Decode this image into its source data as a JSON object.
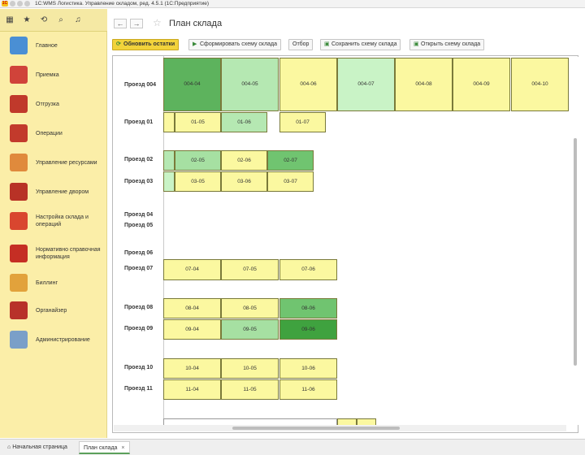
{
  "window": {
    "title": "1С:WMS Логистика. Управление складом, ред. 4.5.1  (1С:Предприятие)",
    "logo": "1С"
  },
  "toolbar_icons": [
    "grid-icon",
    "star-icon",
    "history-icon",
    "search-icon",
    "bell-icon"
  ],
  "toolbar_glyphs": [
    "▦",
    "★",
    "⟲",
    "⌕",
    "♫"
  ],
  "sidebar": {
    "items": [
      {
        "label": "Главное",
        "icon": "home-icon",
        "color": "#4a8fd4"
      },
      {
        "label": "Приемка",
        "icon": "receiving-icon",
        "color": "#d0433a"
      },
      {
        "label": "Отгрузка",
        "icon": "shipping-truck-icon",
        "color": "#c0392b"
      },
      {
        "label": "Операции",
        "icon": "operations-clipboard-icon",
        "color": "#c23a2c"
      },
      {
        "label": "Управление ресурсами",
        "icon": "resources-person-icon",
        "color": "#e08a3c"
      },
      {
        "label": "Управление двором",
        "icon": "yard-truck-icon",
        "color": "#b83226"
      },
      {
        "label": "Настройка склада и операций",
        "icon": "warehouse-settings-icon",
        "color": "#d9462f"
      },
      {
        "label": "Нормативно справочная информация",
        "icon": "reference-book-icon",
        "color": "#c52e24"
      },
      {
        "label": "Биллинг",
        "icon": "billing-hand-icon",
        "color": "#e2a23b"
      },
      {
        "label": "Органайзер",
        "icon": "organizer-question-icon",
        "color": "#b8322a"
      },
      {
        "label": "Администрирование",
        "icon": "admin-gear-icon",
        "color": "#7a9fc8"
      }
    ]
  },
  "header": {
    "back": "←",
    "forward": "→",
    "favorite": "☆",
    "title": "План склада"
  },
  "commands": {
    "refresh": {
      "label": "Обновить остатки",
      "icon": "⟳"
    },
    "build": {
      "label": "Сформировать схему склада",
      "icon": "▶"
    },
    "select": {
      "label": "Отбор"
    },
    "save": {
      "label": "Сохранить схему склада",
      "icon": "▣"
    },
    "open": {
      "label": "Открыть схему склада",
      "icon": "▣"
    }
  },
  "plan": {
    "rows": [
      {
        "label": "Проезд 004",
        "cells": [
          {
            "text": "004-04",
            "color": "#5db35d"
          },
          {
            "text": "004-05",
            "color": "#b5e8b2"
          },
          {
            "text": "004-06",
            "color": "#fbf8a0"
          },
          {
            "text": "004-07",
            "color": "#c9f3c6"
          },
          {
            "text": "004-08",
            "color": "#fbf8a0"
          },
          {
            "text": "004-09",
            "color": "#fbf8a0"
          },
          {
            "text": "004-10",
            "color": "#fbf8a0"
          }
        ]
      },
      {
        "label": "Проезд 01",
        "cells": [
          {
            "text": "",
            "color": "#fbf8a0"
          },
          {
            "text": "01-05",
            "color": "#fbf8a0"
          },
          {
            "text": "01-06",
            "color": "#b5e8b2"
          },
          {
            "text": "01-07",
            "color": "#fbf8a0"
          }
        ]
      },
      {
        "label": "Проезд 02",
        "cells": [
          {
            "text": "",
            "color": "#b5e8b2"
          },
          {
            "text": "02-05",
            "color": "#a6e0a2"
          },
          {
            "text": "02-06",
            "color": "#fbf8a0"
          },
          {
            "text": "02-07",
            "color": "#70c470"
          }
        ]
      },
      {
        "label": "Проезд 03",
        "cells": [
          {
            "text": "",
            "color": "#c9f3c6"
          },
          {
            "text": "03-05",
            "color": "#fbf8a0"
          },
          {
            "text": "03-06",
            "color": "#fbf8a0"
          },
          {
            "text": "03-07",
            "color": "#fbf8a0"
          }
        ]
      },
      {
        "label": "Проезд 04",
        "cells": []
      },
      {
        "label": "Проезд 05",
        "cells": []
      },
      {
        "label": "Проезд 06",
        "cells": []
      },
      {
        "label": "Проезд 07",
        "cells": [
          {
            "text": "07-04",
            "color": "#fbf8a0"
          },
          {
            "text": "07-05",
            "color": "#fbf8a0"
          },
          {
            "text": "07-06",
            "color": "#fbf8a0"
          }
        ]
      },
      {
        "label": "Проезд 08",
        "cells": [
          {
            "text": "08-04",
            "color": "#fbf8a0"
          },
          {
            "text": "08-05",
            "color": "#fbf8a0"
          },
          {
            "text": "08-06",
            "color": "#70c470"
          }
        ]
      },
      {
        "label": "Проезд 09",
        "cells": [
          {
            "text": "09-04",
            "color": "#fbf8a0"
          },
          {
            "text": "09-05",
            "color": "#a6e0a2"
          },
          {
            "text": "09-06",
            "color": "#3fa23f"
          }
        ]
      },
      {
        "label": "Проезд 10",
        "cells": [
          {
            "text": "10-04",
            "color": "#fbf8a0"
          },
          {
            "text": "10-05",
            "color": "#fbf8a0"
          },
          {
            "text": "10-06",
            "color": "#fbf8a0"
          }
        ]
      },
      {
        "label": "Проезд 11",
        "cells": [
          {
            "text": "11-04",
            "color": "#fbf8a0"
          },
          {
            "text": "11-05",
            "color": "#fbf8a0"
          },
          {
            "text": "11-06",
            "color": "#fbf8a0"
          }
        ]
      },
      {
        "label": "",
        "cells": [
          {
            "text": "",
            "color": "#ffffff"
          },
          {
            "text": "",
            "color": "#fbf8a0"
          },
          {
            "text": "",
            "color": "#fbf8a0"
          }
        ]
      }
    ]
  },
  "tabs": [
    {
      "label": "Начальная страница",
      "icon": "home-icon"
    },
    {
      "label": "План склада",
      "active": true,
      "close": "×"
    }
  ]
}
